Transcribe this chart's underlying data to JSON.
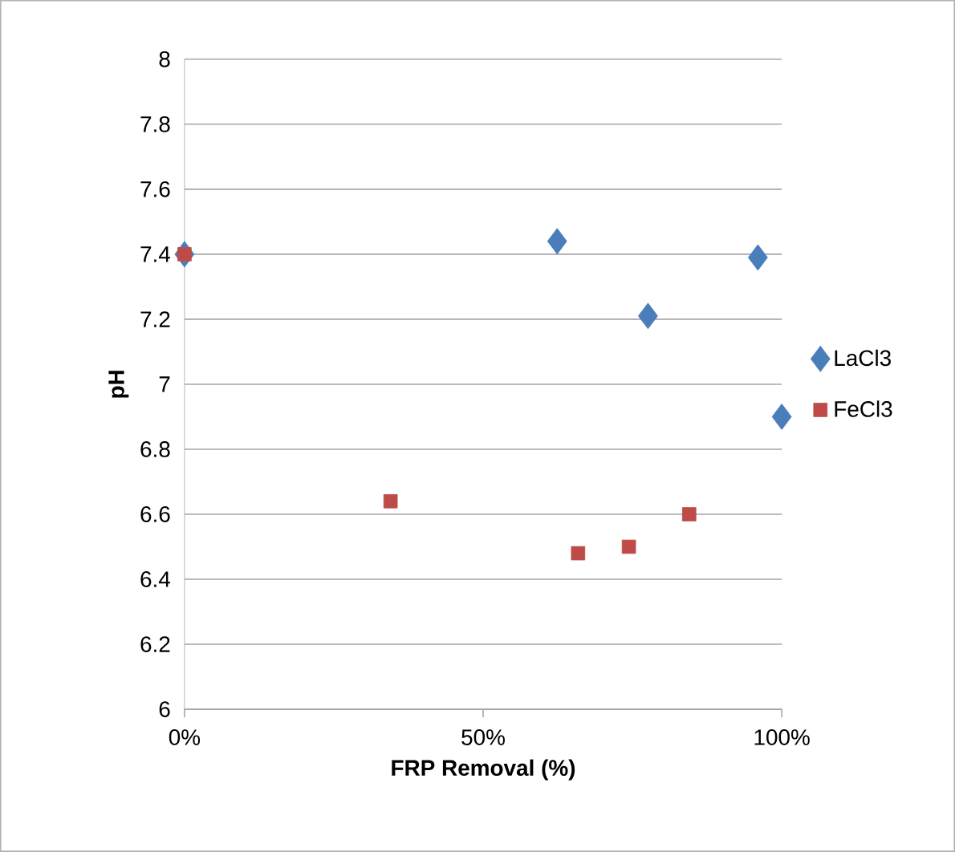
{
  "chart_data": {
    "type": "scatter",
    "xlabel": "FRP Removal (%)",
    "ylabel": "pH",
    "xlim": [
      0,
      1
    ],
    "xticks": [
      {
        "value": 0,
        "label": "0%"
      },
      {
        "value": 0.5,
        "label": "50%"
      },
      {
        "value": 1,
        "label": "100%"
      }
    ],
    "ylim": [
      6,
      8
    ],
    "yticks": [
      6,
      6.2,
      6.4,
      6.6,
      6.8,
      7,
      7.2,
      7.4,
      7.6,
      7.8,
      8
    ],
    "grid": "y",
    "legend": "right",
    "series": [
      {
        "name": "LaCl3",
        "color": "#4a7ebb",
        "marker": "diamond",
        "x": [
          0,
          0.624,
          0.776,
          0.96,
          1.0
        ],
        "values": [
          7.4,
          7.44,
          7.21,
          7.39,
          6.9
        ]
      },
      {
        "name": "FeCl3",
        "color": "#be4b48",
        "marker": "square",
        "x": [
          0,
          0.345,
          0.659,
          0.744,
          0.845
        ],
        "values": [
          7.4,
          6.64,
          6.48,
          6.5,
          6.6
        ]
      }
    ]
  }
}
